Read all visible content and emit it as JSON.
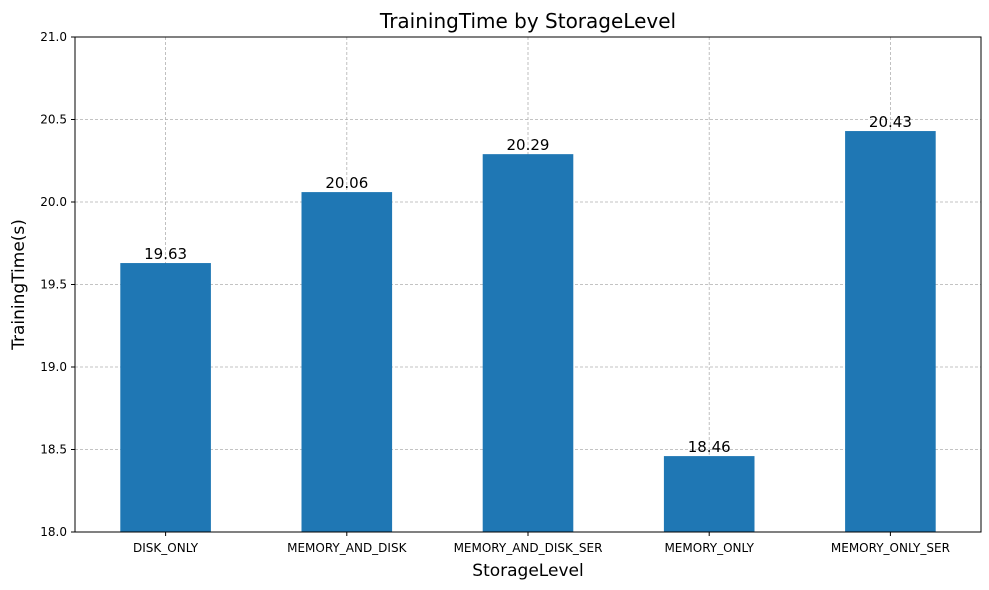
{
  "chart_data": {
    "type": "bar",
    "title": "TrainingTime by StorageLevel",
    "xlabel": "StorageLevel",
    "ylabel": "TrainingTime(s)",
    "categories": [
      "DISK_ONLY",
      "MEMORY_AND_DISK",
      "MEMORY_AND_DISK_SER",
      "MEMORY_ONLY",
      "MEMORY_ONLY_SER"
    ],
    "values": [
      19.63,
      20.06,
      20.29,
      18.46,
      20.43
    ],
    "data_labels": [
      "19.63",
      "20.06",
      "20.29",
      "18.46",
      "20.43"
    ],
    "ylim": [
      18.0,
      21.0
    ],
    "yticks": [
      18.0,
      18.5,
      19.0,
      19.5,
      20.0,
      20.5,
      21.0
    ],
    "ytick_labels": [
      "18.0",
      "18.5",
      "19.0",
      "19.5",
      "20.0",
      "20.5",
      "21.0"
    ],
    "grid": true,
    "bar_color": "#1f77b4"
  }
}
